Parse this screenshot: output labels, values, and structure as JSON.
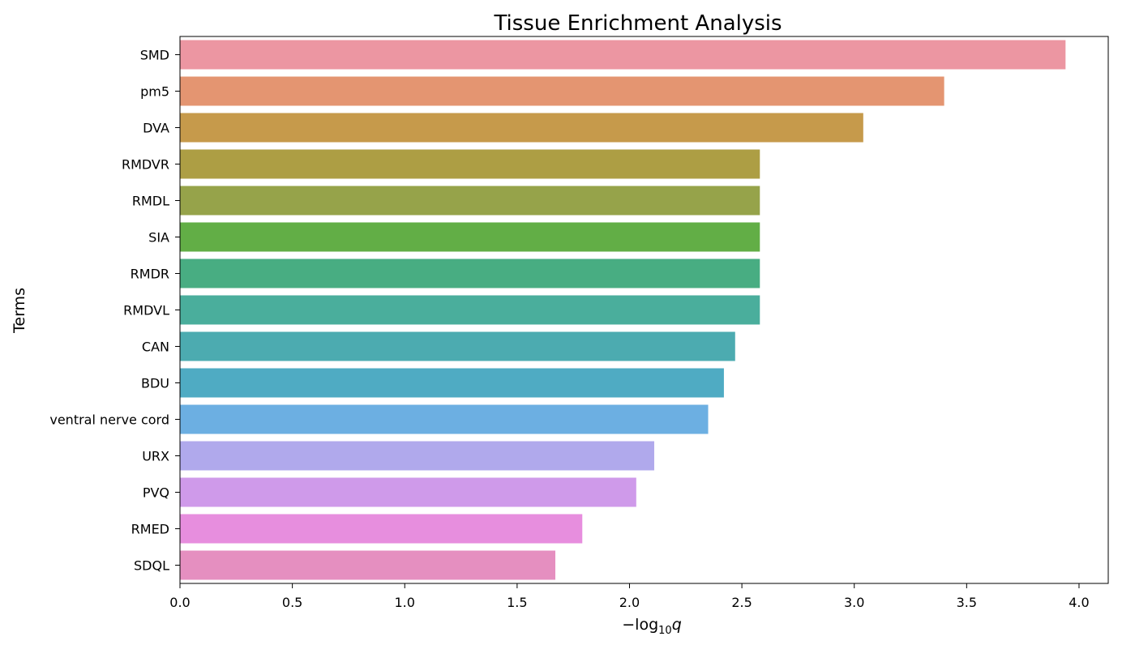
{
  "chart_data": {
    "type": "bar",
    "orientation": "horizontal",
    "title": "Tissue Enrichment Analysis",
    "xlabel": "−log",
    "xlabel_subscript": "10",
    "xlabel_var": "q",
    "ylabel": "Terms",
    "xlim": [
      0,
      4.13
    ],
    "xticks": [
      "0.0",
      "0.5",
      "1.0",
      "1.5",
      "2.0",
      "2.5",
      "3.0",
      "3.5",
      "4.0"
    ],
    "grid": false,
    "categories": [
      "SMD",
      "pm5",
      "DVA",
      "RMDVR",
      "RMDL",
      "SIA",
      "RMDR",
      "RMDVL",
      "CAN",
      "BDU",
      "ventral nerve cord",
      "URX",
      "PVQ",
      "RMED",
      "SDQL"
    ],
    "values": [
      3.94,
      3.4,
      3.04,
      2.58,
      2.58,
      2.58,
      2.58,
      2.58,
      2.47,
      2.42,
      2.35,
      2.11,
      2.03,
      1.79,
      1.67
    ],
    "colors": [
      "#ec96a2",
      "#e49571",
      "#c69a4b",
      "#ad9e44",
      "#96a34a",
      "#62ae46",
      "#48ad82",
      "#4aae9c",
      "#4cabb0",
      "#4fabc3",
      "#6cafe2",
      "#b0a9ec",
      "#cf9aea",
      "#e78ede",
      "#e58fc0"
    ]
  }
}
